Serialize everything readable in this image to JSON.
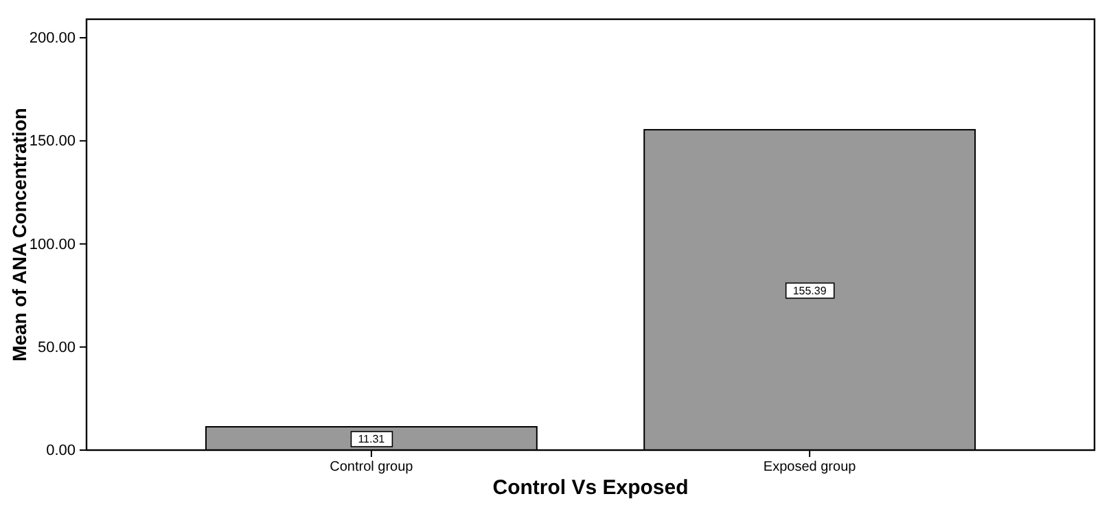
{
  "chart_data": {
    "type": "bar",
    "xlabel": "Control Vs Exposed",
    "ylabel": "Mean of ANA Concentration",
    "categories": [
      "Control group",
      "Exposed group"
    ],
    "values": [
      11.31,
      155.39
    ],
    "color": "#999999",
    "data_labels": true,
    "ylim": [
      0,
      209
    ],
    "yticks": [
      {
        "value": 0,
        "label": "0.00"
      },
      {
        "value": 50,
        "label": "50.00"
      },
      {
        "value": 100,
        "label": "100.00"
      },
      {
        "value": 150,
        "label": "150.00"
      },
      {
        "value": 200,
        "label": "200.00"
      }
    ],
    "grid": false
  }
}
